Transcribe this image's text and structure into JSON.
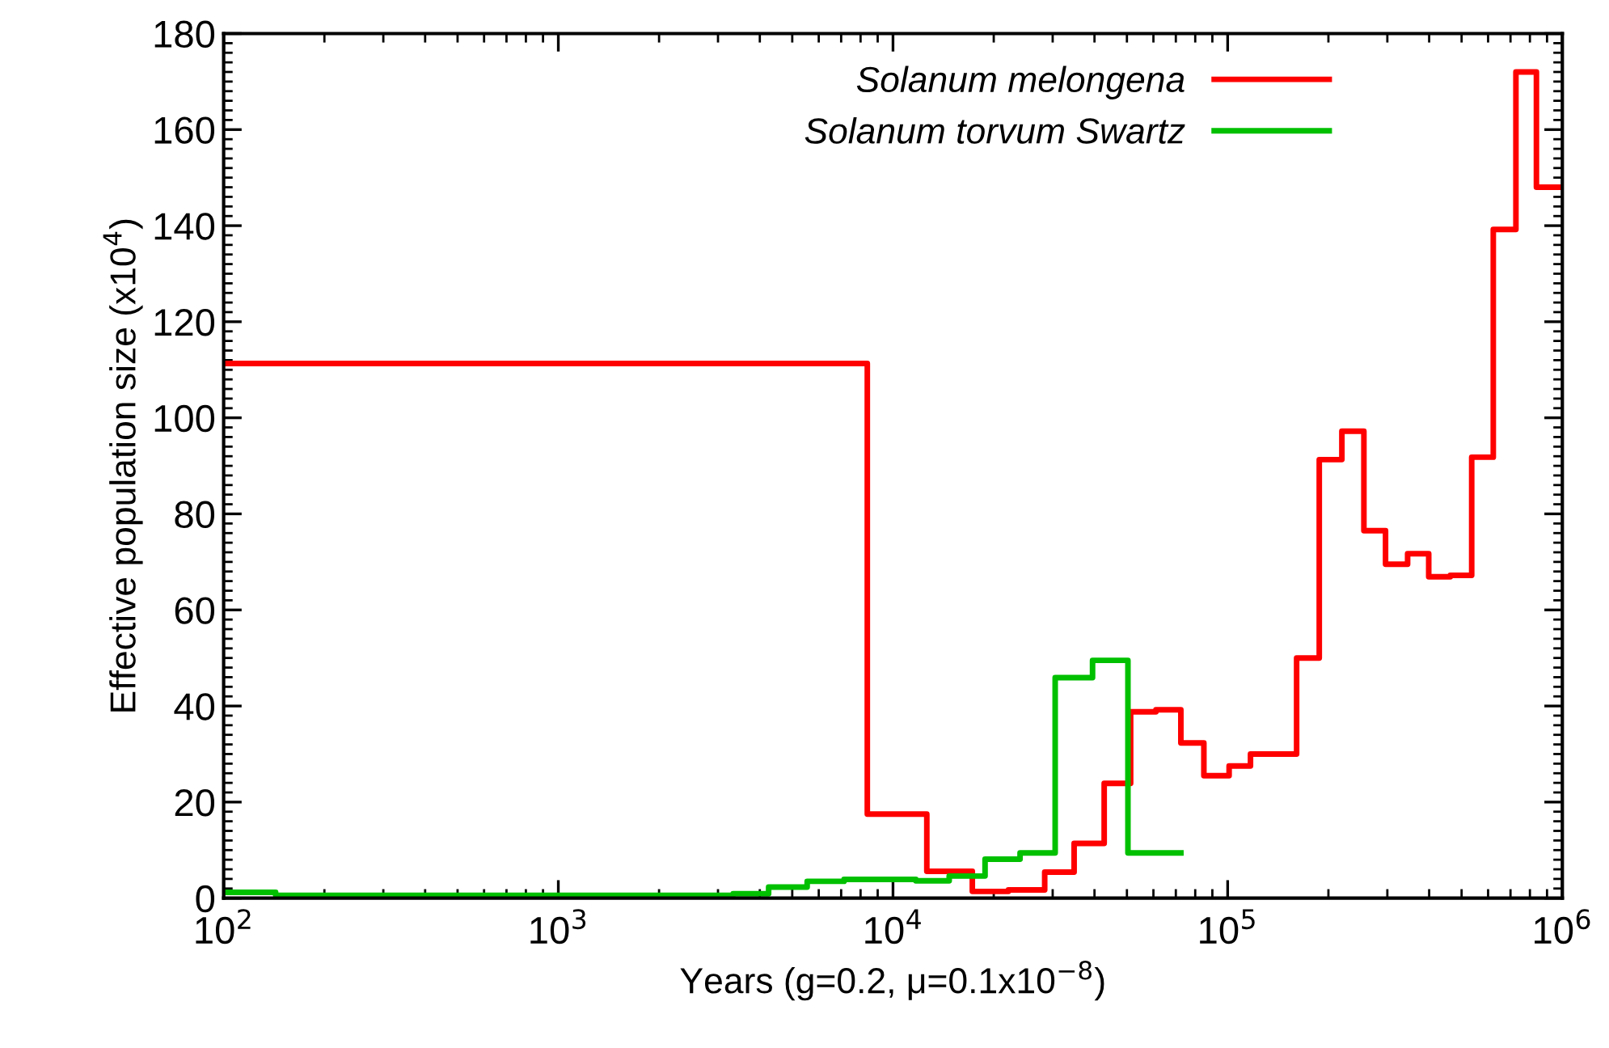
{
  "chart_data": {
    "type": "step",
    "xlabel": "Years (g=0.2, μ=0.1x10$^{−8}$)",
    "ylabel": "Effective population size (x10$^{4}$)",
    "log": "x",
    "xlim": [
      100,
      1000000
    ],
    "xticks": [
      {
        "value": 100,
        "label": "10$^{2}$"
      },
      {
        "value": 1000,
        "label": "10$^{3}$"
      },
      {
        "value": 10000,
        "label": "10$^{4}$"
      },
      {
        "value": 100000,
        "label": "10$^{5}$"
      },
      {
        "value": 1000000,
        "label": "10$^{6}$"
      }
    ],
    "ylim": [
      0,
      180
    ],
    "yticks": [
      0,
      20,
      40,
      60,
      80,
      100,
      120,
      140,
      160,
      180
    ],
    "grid": false,
    "legend": "top right",
    "line_style": "solid",
    "series": [
      {
        "name": "Solanum melongena",
        "color": "#ff0000",
        "x": [
          100,
          8380,
          12620,
          17260,
          22130,
          28400,
          34770,
          42760,
          51290,
          61050,
          72470,
          84900,
          101000,
          117000,
          160700,
          187800,
          219400,
          255300,
          296300,
          344900,
          398800,
          462700,
          536000,
          621800,
          726600,
          836700,
          1000000
        ],
        "values": [
          111.3,
          17.5,
          5.6,
          1.4,
          1.7,
          5.4,
          11.4,
          23.9,
          38.8,
          39.2,
          32.3,
          25.5,
          27.5,
          30,
          50,
          91.3,
          97.2,
          76.5,
          69.5,
          71.7,
          66.9,
          67.2,
          91.8,
          139.2,
          172,
          148,
          148
        ]
      },
      {
        "name": "Solanum torvum Swartz",
        "color": "#00c000",
        "x": [
          100,
          143,
          3330,
          4250,
          5540,
          7140,
          11700,
          14720,
          18840,
          23970,
          30520,
          39470,
          50350,
          72470
        ],
        "values": [
          1.2,
          0.6,
          0.9,
          2.3,
          3.5,
          3.9,
          3.6,
          4.6,
          8.1,
          9.4,
          45.9,
          49.5,
          9.4,
          9.4
        ]
      }
    ]
  }
}
